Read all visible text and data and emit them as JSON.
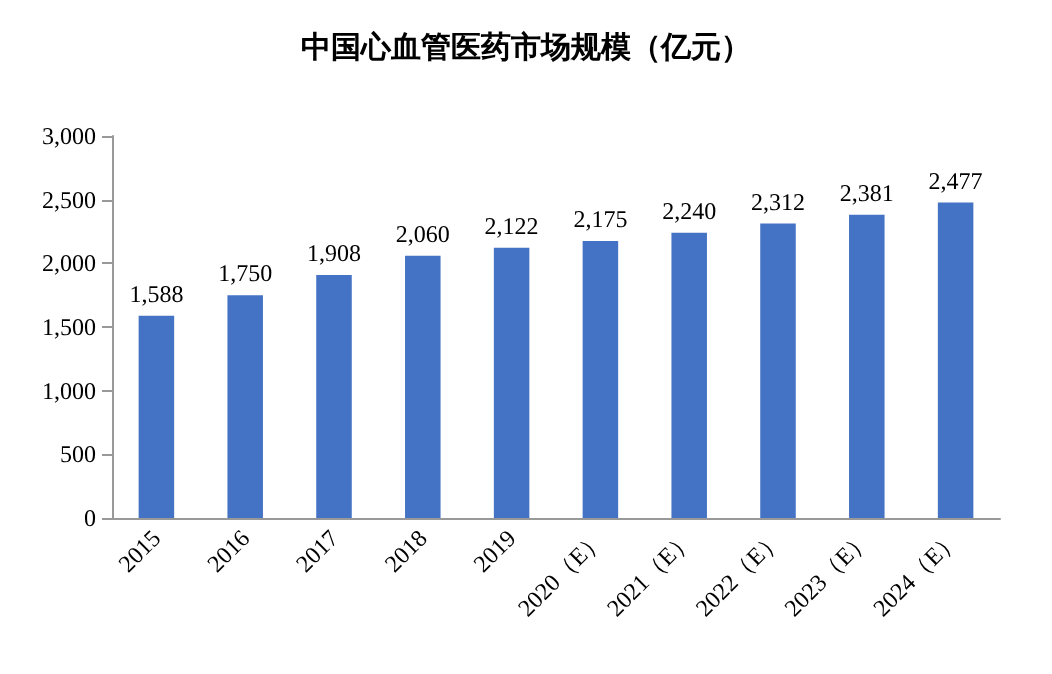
{
  "chart_data": {
    "type": "bar",
    "title": "中国心血管医药市场规模（亿元）",
    "categories": [
      "2015",
      "2016",
      "2017",
      "2018",
      "2019",
      "2020（E）",
      "2021（E）",
      "2022（E）",
      "2023（E）",
      "2024（E）"
    ],
    "values": [
      1588,
      1750,
      1908,
      2060,
      2122,
      2175,
      2240,
      2312,
      2381,
      2477
    ],
    "value_labels": [
      "1,588",
      "1,750",
      "1,908",
      "2,060",
      "2,122",
      "2,175",
      "2,240",
      "2,312",
      "2,381",
      "2,477"
    ],
    "color": "#4472c4",
    "ylim": [
      0,
      3000
    ],
    "yticks": [
      {
        "value": 0,
        "label": "0"
      },
      {
        "value": 500,
        "label": "500"
      },
      {
        "value": 1000,
        "label": "1,000"
      },
      {
        "value": 1500,
        "label": "1,500"
      },
      {
        "value": 2000,
        "label": "2,000"
      },
      {
        "value": 2500,
        "label": "2,500"
      },
      {
        "value": 3000,
        "label": "3,000"
      }
    ],
    "grid": false
  }
}
